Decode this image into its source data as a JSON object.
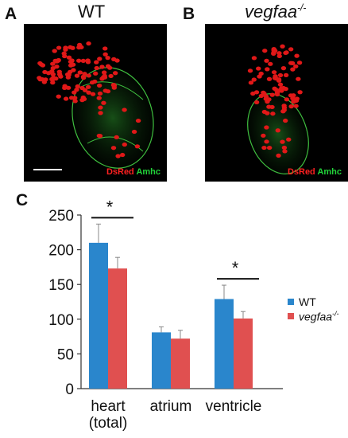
{
  "panels": {
    "a": {
      "letter": "A",
      "title": "WT"
    },
    "b": {
      "letter": "B",
      "title_base": "vegfaa",
      "title_sup": "-/-"
    },
    "c": {
      "letter": "C"
    }
  },
  "stain": {
    "red_label": "DsRed",
    "green_label": "Amhc"
  },
  "colors": {
    "wt": "#2a86cc",
    "mutant": "#e05050",
    "dsred": "#ff2020",
    "amhc": "#22d43a"
  },
  "chart_data": {
    "type": "bar",
    "categories": [
      "heart\n(total)",
      "atrium",
      "ventricle"
    ],
    "series": [
      {
        "name": "WT",
        "values": [
          210,
          81,
          129
        ],
        "errors": [
          27,
          8,
          20
        ]
      },
      {
        "name": "vegfaa-/-",
        "values": [
          173,
          72,
          101
        ],
        "errors": [
          16,
          12,
          10
        ]
      }
    ],
    "ylim": [
      0,
      250
    ],
    "yticks": [
      0,
      50,
      100,
      150,
      200,
      250
    ],
    "xlabel": "",
    "ylabel": "",
    "legend_position": "right",
    "significance": [
      {
        "category_index": 0,
        "label": "*"
      },
      {
        "category_index": 2,
        "label": "*"
      }
    ]
  },
  "legend": {
    "wt_label": "WT",
    "mut_base": "vegfaa",
    "mut_sup": "-/-"
  }
}
